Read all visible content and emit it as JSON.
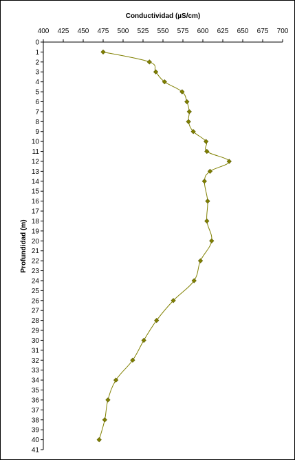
{
  "chart_data": {
    "type": "line",
    "title": "Conductividad (µS/cm)",
    "ylabel": "Profundidad (m)",
    "xlabel": "",
    "xlim": [
      400,
      700
    ],
    "ylim": [
      0,
      41
    ],
    "x_ticks": [
      "400",
      "425",
      "450",
      "475",
      "500",
      "525",
      "550",
      "575",
      "600",
      "625",
      "650",
      "675",
      "700"
    ],
    "y_ticks": [
      "0",
      "1",
      "2",
      "3",
      "4",
      "5",
      "6",
      "7",
      "8",
      "9",
      "10",
      "11",
      "12",
      "13",
      "14",
      "15",
      "16",
      "17",
      "18",
      "19",
      "20",
      "21",
      "22",
      "23",
      "24",
      "25",
      "26",
      "27",
      "28",
      "29",
      "30",
      "31",
      "32",
      "33",
      "34",
      "35",
      "36",
      "37",
      "38",
      "39",
      "40",
      "41"
    ],
    "x_axis_position": "top",
    "y_axis_inverted": true,
    "grid": false,
    "legend": "none",
    "color": "#808000",
    "series": [
      {
        "points": [
          {
            "x": 475,
            "y": 1
          },
          {
            "x": 533,
            "y": 2
          },
          {
            "x": 541,
            "y": 3
          },
          {
            "x": 552,
            "y": 4
          },
          {
            "x": 574,
            "y": 5
          },
          {
            "x": 580,
            "y": 6
          },
          {
            "x": 583,
            "y": 7
          },
          {
            "x": 582,
            "y": 8
          },
          {
            "x": 588,
            "y": 9
          },
          {
            "x": 604,
            "y": 10
          },
          {
            "x": 605,
            "y": 11
          },
          {
            "x": 633,
            "y": 12
          },
          {
            "x": 609,
            "y": 13
          },
          {
            "x": 602,
            "y": 14
          },
          {
            "x": 606,
            "y": 16
          },
          {
            "x": 605,
            "y": 18
          },
          {
            "x": 611,
            "y": 20
          },
          {
            "x": 597,
            "y": 22
          },
          {
            "x": 589,
            "y": 24
          },
          {
            "x": 563,
            "y": 26
          },
          {
            "x": 542,
            "y": 28
          },
          {
            "x": 526,
            "y": 30
          },
          {
            "x": 512,
            "y": 32
          },
          {
            "x": 491,
            "y": 34
          },
          {
            "x": 481,
            "y": 36
          },
          {
            "x": 477,
            "y": 38
          },
          {
            "x": 470,
            "y": 40
          }
        ]
      }
    ]
  }
}
